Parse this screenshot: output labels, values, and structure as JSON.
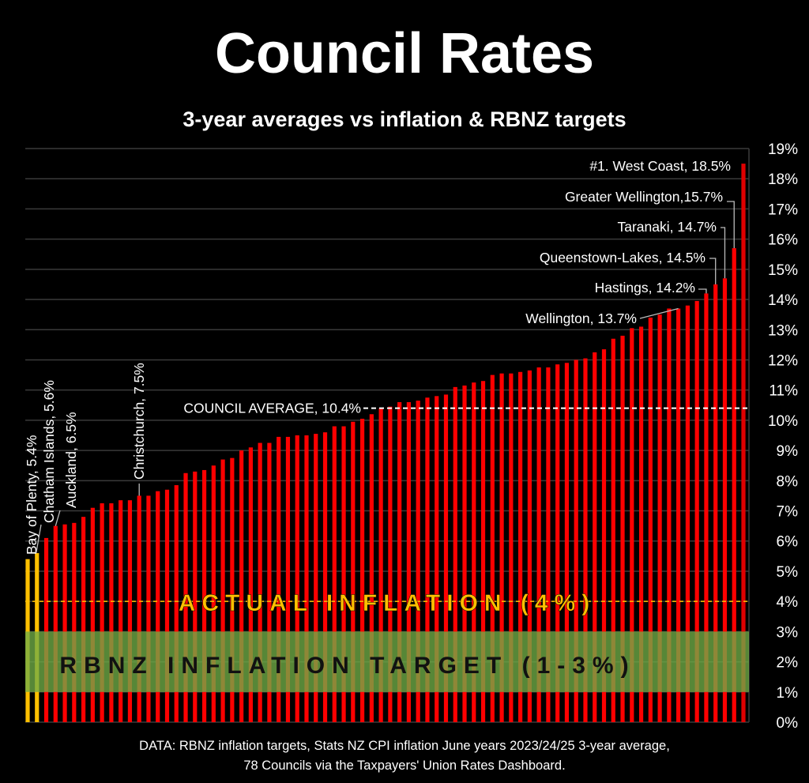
{
  "chart_data": {
    "type": "bar",
    "title": "Council Rates",
    "subtitle": "3-year averages vs inflation & RBNZ targets",
    "xlabel": "",
    "ylabel": "",
    "ylim": [
      0,
      19
    ],
    "yticks": [
      "0%",
      "1%",
      "2%",
      "3%",
      "4%",
      "5%",
      "6%",
      "7%",
      "8%",
      "9%",
      "10%",
      "11%",
      "12%",
      "13%",
      "14%",
      "15%",
      "16%",
      "17%",
      "18%",
      "19%"
    ],
    "grid": true,
    "values": [
      5.4,
      5.6,
      6.1,
      6.5,
      6.55,
      6.6,
      6.8,
      7.1,
      7.25,
      7.25,
      7.35,
      7.35,
      7.5,
      7.5,
      7.65,
      7.7,
      7.85,
      8.25,
      8.3,
      8.35,
      8.5,
      8.7,
      8.75,
      9.0,
      9.1,
      9.25,
      9.25,
      9.45,
      9.45,
      9.5,
      9.5,
      9.55,
      9.6,
      9.8,
      9.8,
      9.95,
      10.05,
      10.2,
      10.4,
      10.45,
      10.6,
      10.6,
      10.65,
      10.75,
      10.8,
      10.85,
      11.1,
      11.15,
      11.25,
      11.3,
      11.5,
      11.55,
      11.55,
      11.6,
      11.65,
      11.75,
      11.75,
      11.85,
      11.9,
      12.0,
      12.05,
      12.25,
      12.35,
      12.7,
      12.8,
      13.05,
      13.1,
      13.4,
      13.5,
      13.7,
      13.7,
      13.8,
      13.95,
      14.2,
      14.5,
      14.7,
      15.7,
      18.5
    ],
    "highlight_indices": [
      0,
      1
    ],
    "colors": {
      "bar": "#ff0000",
      "highlight_bar": "#ffc000",
      "target_band": "#70ad47",
      "inflation_line": "#ffc000",
      "average_line": "#ffffff",
      "grid": "#3a3a3a"
    },
    "reference_lines": {
      "council_average": {
        "value": 10.4,
        "label": "COUNCIL AVERAGE, 10.4%"
      },
      "actual_inflation": {
        "value": 4,
        "label": "ACTUAL INFLATION  (4%)"
      },
      "target_band": {
        "from": 1,
        "to": 3,
        "label": "RBNZ INFLATION TARGET  (1-3%)"
      }
    },
    "annotations": [
      {
        "index": 0,
        "label": "Bay of Plenty, 5.4%"
      },
      {
        "index": 1,
        "label": "Chatham Islands, 5.6%"
      },
      {
        "index": 3,
        "label": "Auckland, 6.5%"
      },
      {
        "index": 12,
        "label": "Christchurch, 7.5%"
      },
      {
        "index": 70,
        "label": "Wellington, 13.7%"
      },
      {
        "index": 73,
        "label": "Hastings, 14.2%"
      },
      {
        "index": 74,
        "label": "Queenstown-Lakes, 14.5%"
      },
      {
        "index": 75,
        "label": "Taranaki, 14.7%"
      },
      {
        "index": 76,
        "label": "Greater Wellington,15.7%"
      },
      {
        "index": 77,
        "label": "#1. West Coast, 18.5%"
      }
    ],
    "source_lines": [
      "DATA: RBNZ inflation targets, Stats NZ CPI inflation June years 2023/24/25 3-year average,",
      "78 Councils via the Taxpayers' Union Rates Dashboard."
    ]
  }
}
